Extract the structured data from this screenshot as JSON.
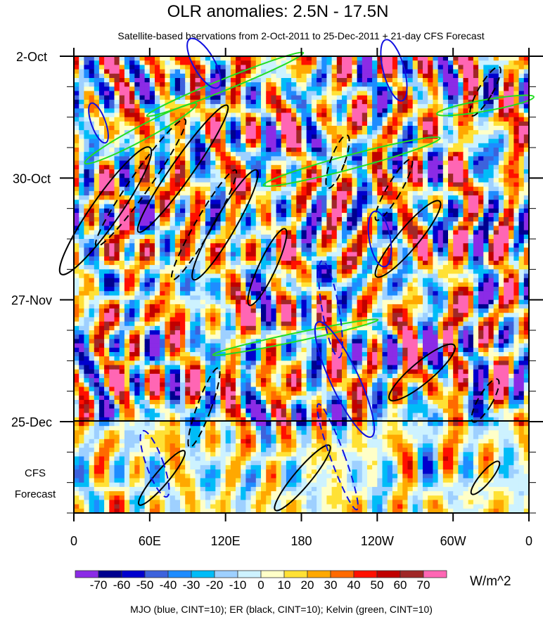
{
  "chart_data": {
    "type": "heatmap",
    "title": "OLR anomalies: 2.5N - 17.5N",
    "subtitle": "Satellite-based bservations from 2-Oct-2011 to 25-Dec-2011 + 21-day CFS Forecast",
    "x_ticks": [
      "0",
      "60E",
      "120E",
      "180",
      "120W",
      "60W",
      "0"
    ],
    "x_tick_values": [
      0,
      60,
      120,
      180,
      240,
      300,
      360
    ],
    "xlim": [
      0,
      360
    ],
    "y_ticks": [
      "2-Oct",
      "30-Oct",
      "27-Nov",
      "25-Dec"
    ],
    "y_tick_days": [
      0,
      28,
      56,
      84
    ],
    "ylim_days": [
      0,
      105
    ],
    "forecast_label": [
      "CFS",
      "Forecast"
    ],
    "forecast_start_day": 84,
    "colorbar": {
      "levels": [
        -70,
        -60,
        -50,
        -40,
        -30,
        -20,
        -10,
        0,
        10,
        20,
        30,
        40,
        50,
        60,
        70
      ],
      "labels": [
        "-70",
        "-60",
        "-50",
        "-40",
        "-30",
        "-20",
        "-10",
        "0",
        "10",
        "20",
        "30",
        "40",
        "50",
        "60",
        "70"
      ],
      "colors": [
        "#8b2be6",
        "#00008f",
        "#0000cd",
        "#3d62dc",
        "#1e8cff",
        "#00bcf7",
        "#9ed0ff",
        "#cdf2ff",
        "#ffffc8",
        "#ffe135",
        "#ffa800",
        "#ff6a00",
        "#ff1000",
        "#c00000",
        "#a02828",
        "#ff66b4"
      ],
      "units": "W/m^2"
    },
    "legend_note": "MJO (blue, CINT=10); ER (black, CINT=10); Kelvin (green, CINT=10)",
    "contour_colors": {
      "MJO": "#1010e0",
      "ER": "#000000",
      "Kelvin": "#22dd22"
    }
  }
}
